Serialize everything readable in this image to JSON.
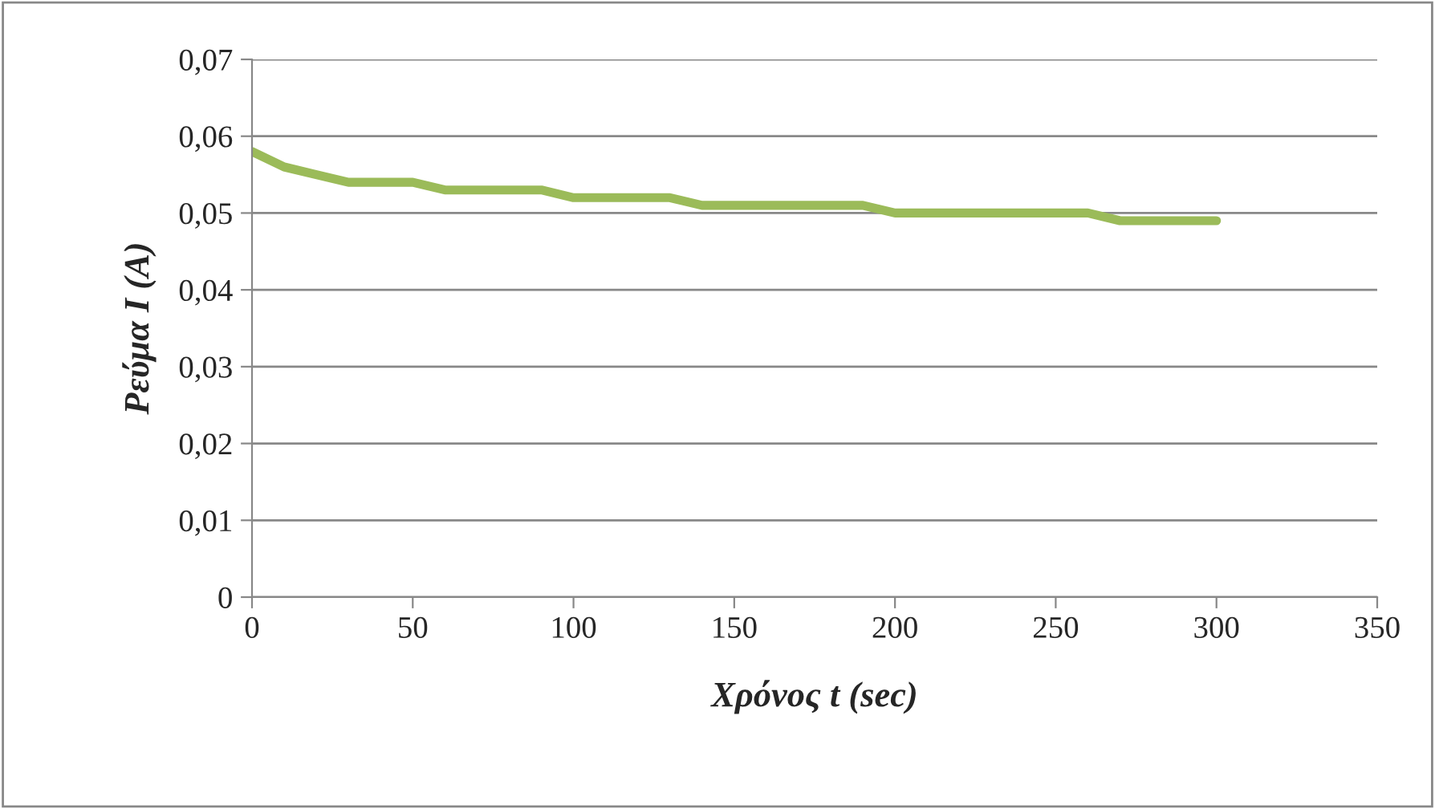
{
  "chart_data": {
    "type": "line",
    "xlabel": "Χρόνος t (sec)",
    "ylabel": "Ρεύμα I (A)",
    "x": [
      0,
      10,
      20,
      30,
      40,
      50,
      60,
      70,
      80,
      90,
      100,
      110,
      120,
      130,
      140,
      150,
      160,
      170,
      180,
      190,
      200,
      210,
      220,
      230,
      240,
      250,
      260,
      270,
      280,
      290,
      300
    ],
    "series": [
      {
        "color": "#9bbb59",
        "values": [
          0.058,
          0.056,
          0.055,
          0.054,
          0.054,
          0.054,
          0.053,
          0.053,
          0.053,
          0.053,
          0.052,
          0.052,
          0.052,
          0.052,
          0.051,
          0.051,
          0.051,
          0.051,
          0.051,
          0.051,
          0.05,
          0.05,
          0.05,
          0.05,
          0.05,
          0.05,
          0.05,
          0.049,
          0.049,
          0.049,
          0.049
        ]
      }
    ],
    "xlim": [
      0,
      350
    ],
    "xticks": [
      0,
      50,
      100,
      150,
      200,
      250,
      300,
      350
    ],
    "ylim": [
      0,
      0.07
    ],
    "yticks": [
      {
        "value": 0,
        "label": "0"
      },
      {
        "value": 0.01,
        "label": "0,01"
      },
      {
        "value": 0.02,
        "label": "0,02"
      },
      {
        "value": 0.03,
        "label": "0,03"
      },
      {
        "value": 0.04,
        "label": "0,04"
      },
      {
        "value": 0.05,
        "label": "0,05"
      },
      {
        "value": 0.06,
        "label": "0,06"
      },
      {
        "value": 0.07,
        "label": "0,07"
      }
    ],
    "grid": "y",
    "marker": "none",
    "line_style": "solid",
    "legend": false
  }
}
